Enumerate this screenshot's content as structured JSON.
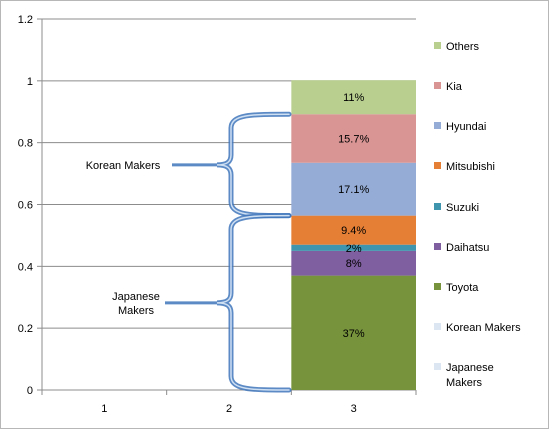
{
  "chart_data": {
    "type": "bar",
    "stacked": true,
    "categories": [
      "1",
      "2",
      "3"
    ],
    "series": [
      {
        "name": "Toyota",
        "color": "#77933c",
        "values": [
          0,
          0,
          0.37
        ],
        "label": "37%"
      },
      {
        "name": "Daihatsu",
        "color": "#7f5f9f",
        "values": [
          0,
          0,
          0.08
        ],
        "label": "8%"
      },
      {
        "name": "Suzuki",
        "color": "#3f95ad",
        "values": [
          0,
          0,
          0.02
        ],
        "label": "2%"
      },
      {
        "name": "Mitsubishi",
        "color": "#e57f35",
        "values": [
          0,
          0,
          0.094
        ],
        "label": "9.4%"
      },
      {
        "name": "Hyundai",
        "color": "#95acd6",
        "values": [
          0,
          0,
          0.171
        ],
        "label": "17.1%"
      },
      {
        "name": "Kia",
        "color": "#d89594",
        "values": [
          0,
          0,
          0.157
        ],
        "label": "15.7%"
      },
      {
        "name": "Others",
        "color": "#b9cf90",
        "values": [
          0,
          0,
          0.11
        ],
        "label": "11%"
      },
      {
        "name": "Korean Makers",
        "color": "#dce6f2",
        "values": [
          0,
          0,
          0
        ]
      },
      {
        "name": "Japanese Makers",
        "color": "#dce6f2",
        "values": [
          0,
          0,
          0
        ]
      }
    ],
    "yticks": [
      "0",
      "0.2",
      "0.4",
      "0.6",
      "0.8",
      "1",
      "1.2"
    ],
    "ylim": [
      0,
      1.2
    ],
    "grid": true,
    "legend": "right",
    "annotations": [
      {
        "text_lines": [
          "Korean Makers"
        ],
        "range": [
          0.564,
          0.892
        ]
      },
      {
        "text_lines": [
          "Japanese",
          "Makers"
        ],
        "range": [
          0.0,
          0.564
        ]
      }
    ]
  }
}
